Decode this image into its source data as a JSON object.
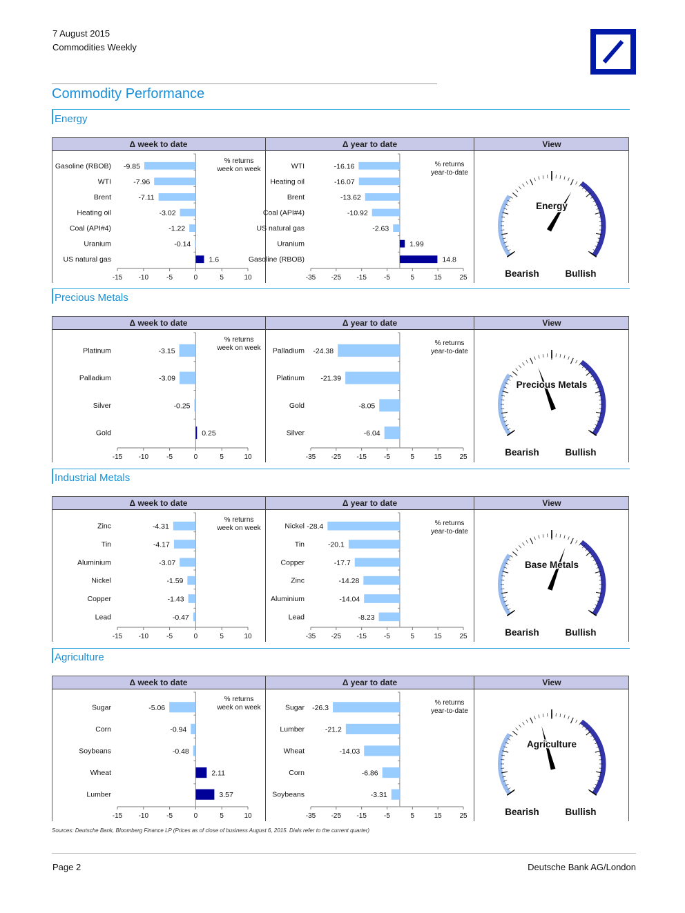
{
  "header": {
    "date": "7 August 2015",
    "publication": "Commodities Weekly"
  },
  "page_title": "Commodity Performance",
  "column_heads": {
    "week": "Δ week to date",
    "year": "Δ year to date",
    "view": "View"
  },
  "notes": {
    "week": "%  returns\nweek on week",
    "year": "%  returns\nyear-to-date"
  },
  "gauge_labels": {
    "bearish": "Bearish",
    "bullish": "Bullish"
  },
  "footnote": "Sources: Deutsche Bank, Bloomberg Finance LP (Prices as of close of business August 6, 2015. Dials refer to the current quarter)",
  "footer": {
    "page": "Page 2",
    "company": "Deutsche Bank AG/London"
  },
  "colors": {
    "negative": "#99ccff",
    "positive": "#000099",
    "accent": "#1a8fd6",
    "head_bg": "#c8c8e8",
    "gauge_bull": "#3333aa",
    "gauge_bear": "#99bbee"
  },
  "chart_data": [
    {
      "section": "Energy",
      "dial_label": "Energy",
      "dial_value": 0.62,
      "week": {
        "type": "bar",
        "orientation": "horizontal",
        "categories": [
          "Gasoline (RBOB)",
          "WTI",
          "Brent",
          "Heating oil",
          "Coal (API#4)",
          "Uranium",
          "US natural gas"
        ],
        "values": [
          -9.85,
          -7.96,
          -7.11,
          -3.02,
          -1.22,
          -0.14,
          1.6
        ],
        "xlim": [
          -15,
          10
        ],
        "xticks": [
          -15,
          -10,
          -5,
          0,
          5,
          10
        ]
      },
      "year": {
        "type": "bar",
        "orientation": "horizontal",
        "categories": [
          "WTI",
          "Heating oil",
          "Brent",
          "Coal (API#4)",
          "US natural gas",
          "Uranium",
          "Gasoline (RBOB)"
        ],
        "values": [
          -16.16,
          -16.07,
          -13.62,
          -10.92,
          -2.63,
          1.99,
          14.8
        ],
        "xlim": [
          -35,
          25
        ],
        "xticks": [
          -35,
          -25,
          -15,
          -5,
          5,
          15,
          25
        ]
      }
    },
    {
      "section": "Precious Metals",
      "dial_label": "Precious Metals",
      "dial_value": 0.42,
      "week": {
        "type": "bar",
        "orientation": "horizontal",
        "categories": [
          "Platinum",
          "Palladium",
          "Silver",
          "Gold"
        ],
        "values": [
          -3.15,
          -3.09,
          -0.25,
          0.25
        ],
        "xlim": [
          -15,
          10
        ],
        "xticks": [
          -15,
          -10,
          -5,
          0,
          5,
          10
        ]
      },
      "year": {
        "type": "bar",
        "orientation": "horizontal",
        "categories": [
          "Palladium",
          "Platinum",
          "Gold",
          "Silver"
        ],
        "values": [
          -24.38,
          -21.39,
          -8.05,
          -6.04
        ],
        "xlim": [
          -35,
          25
        ],
        "xticks": [
          -35,
          -25,
          -15,
          -5,
          5,
          15,
          25
        ]
      }
    },
    {
      "section": "Industrial Metals",
      "dial_label": "Base Metals",
      "dial_value": 0.58,
      "week": {
        "type": "bar",
        "orientation": "horizontal",
        "categories": [
          "Zinc",
          "Tin",
          "Aluminium",
          "Nickel",
          "Copper",
          "Lead"
        ],
        "values": [
          -4.31,
          -4.17,
          -3.07,
          -1.59,
          -1.43,
          -0.47
        ],
        "xlim": [
          -15,
          10
        ],
        "xticks": [
          -15,
          -10,
          -5,
          0,
          5,
          10
        ]
      },
      "year": {
        "type": "bar",
        "orientation": "horizontal",
        "categories": [
          "Nickel",
          "Tin",
          "Copper",
          "Zinc",
          "Aluminium",
          "Lead"
        ],
        "values": [
          -28.4,
          -20.1,
          -17.7,
          -14.28,
          -14.04,
          -8.23
        ],
        "xlim": [
          -35,
          25
        ],
        "xticks": [
          -35,
          -25,
          -15,
          -5,
          5,
          15,
          25
        ]
      }
    },
    {
      "section": "Agriculture",
      "dial_label": "Agriculture",
      "dial_value": 0.44,
      "week": {
        "type": "bar",
        "orientation": "horizontal",
        "categories": [
          "Sugar",
          "Corn",
          "Soybeans",
          "Wheat",
          "Lumber"
        ],
        "values": [
          -5.06,
          -0.94,
          -0.48,
          2.11,
          3.57
        ],
        "xlim": [
          -15,
          10
        ],
        "xticks": [
          -15,
          -10,
          -5,
          0,
          5,
          10
        ]
      },
      "year": {
        "type": "bar",
        "orientation": "horizontal",
        "categories": [
          "Sugar",
          "Lumber",
          "Wheat",
          "Corn",
          "Soybeans"
        ],
        "values": [
          -26.3,
          -21.2,
          -14.03,
          -6.86,
          -3.31
        ],
        "xlim": [
          -35,
          25
        ],
        "xticks": [
          -35,
          -25,
          -15,
          -5,
          5,
          15,
          25
        ]
      }
    }
  ]
}
